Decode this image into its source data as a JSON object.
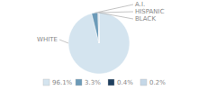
{
  "chart_data": {
    "type": "pie",
    "categories": [
      "WHITE",
      "A.I.",
      "HISPANIC",
      "BLACK"
    ],
    "values": [
      96.1,
      3.3,
      0.4,
      0.2
    ],
    "value_labels": [
      "96.1%",
      "3.3%",
      "0.4%",
      "0.2%"
    ],
    "colors": [
      "#d4e4ef",
      "#6b9ab8",
      "#1f3f5f",
      "#c5d8e8"
    ],
    "legend": "bottom"
  }
}
